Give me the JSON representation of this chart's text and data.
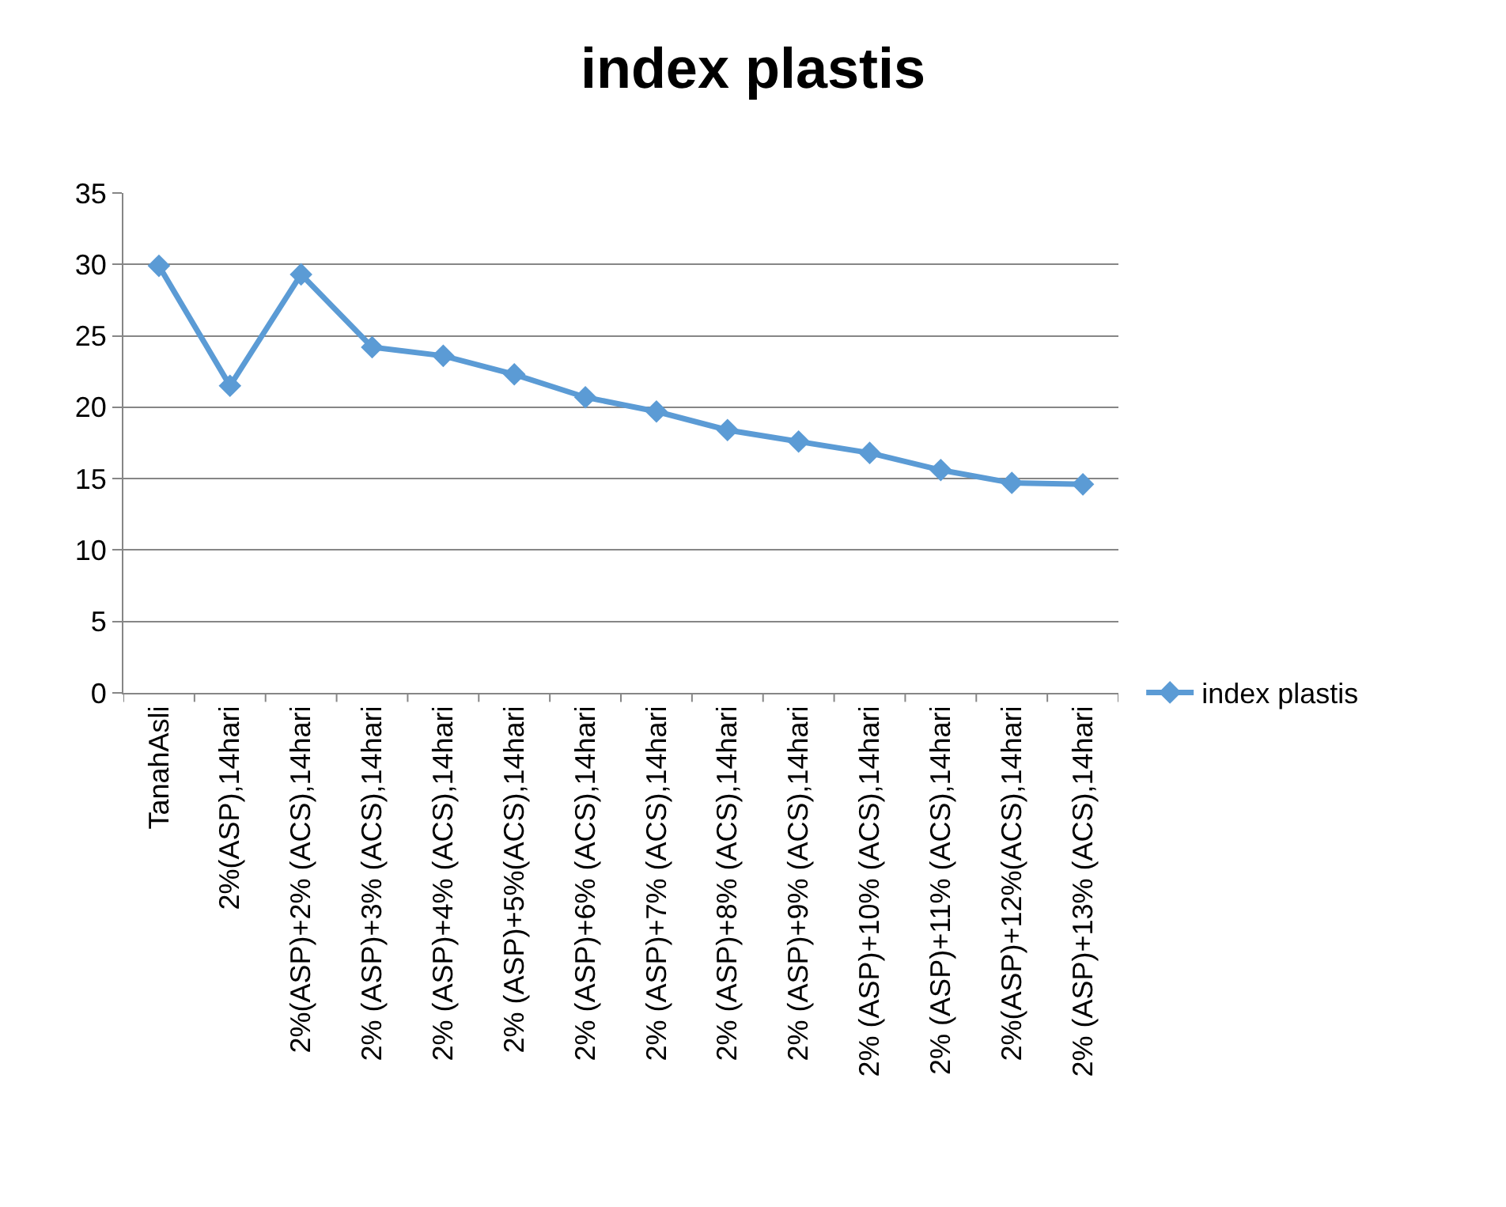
{
  "chart_data": {
    "type": "line",
    "title": "index plastis",
    "categories": [
      "TanahAsli",
      "2%(ASP),14hari",
      "2%(ASP)+2% (ACS),14hari",
      "2% (ASP)+3% (ACS),14hari",
      "2% (ASP)+4% (ACS),14hari",
      "2% (ASP)+5%(ACS),14hari",
      "2% (ASP)+6% (ACS),14hari",
      "2% (ASP)+7% (ACS),14hari",
      "2% (ASP)+8% (ACS),14hari",
      "2% (ASP)+9% (ACS),14hari",
      "2% (ASP)+10% (ACS),14hari",
      "2% (ASP)+11% (ACS),14hari",
      "2%(ASP)+12%(ACS),14hari",
      "2% (ASP)+13% (ACS),14hari"
    ],
    "series": [
      {
        "name": "index plastis",
        "color": "#5b9bd5",
        "values": [
          29.9,
          21.5,
          29.3,
          24.2,
          23.6,
          22.3,
          20.7,
          19.7,
          18.4,
          17.6,
          16.8,
          15.6,
          14.7,
          14.6
        ]
      }
    ],
    "ylim": [
      0,
      35
    ],
    "yticks": [
      0,
      5,
      10,
      15,
      20,
      25,
      30,
      35
    ],
    "grid": "y",
    "legend": "right",
    "marker": "diamond",
    "line_style": "solid"
  }
}
